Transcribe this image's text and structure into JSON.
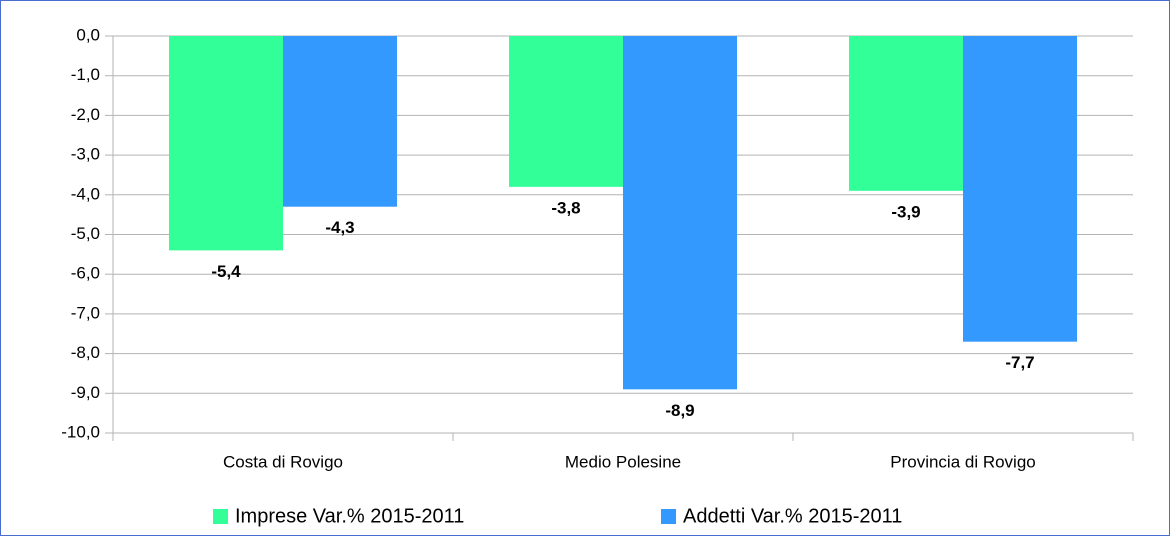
{
  "chart_data": {
    "type": "bar",
    "categories": [
      "Costa di Rovigo",
      "Medio Polesine",
      "Provincia di Rovigo"
    ],
    "series": [
      {
        "name": "Imprese Var.% 2015-2011",
        "color": "#33ff99",
        "values": [
          -5.4,
          -3.8,
          -3.9
        ],
        "value_labels": [
          "-5,4",
          "-3,8",
          "-3,9"
        ]
      },
      {
        "name": "Addetti Var.% 2015-2011",
        "color": "#3399ff",
        "values": [
          -4.3,
          -8.9,
          -7.7
        ],
        "value_labels": [
          "-4,3",
          "-8,9",
          "-7,7"
        ]
      }
    ],
    "ylim": [
      -10,
      0
    ],
    "yticks": [
      {
        "value": 0,
        "label": "0,0"
      },
      {
        "value": -1,
        "label": "-1,0"
      },
      {
        "value": -2,
        "label": "-2,0"
      },
      {
        "value": -3,
        "label": "-3,0"
      },
      {
        "value": -4,
        "label": "-4,0"
      },
      {
        "value": -5,
        "label": "-5,0"
      },
      {
        "value": -6,
        "label": "-6,0"
      },
      {
        "value": -7,
        "label": "-7,0"
      },
      {
        "value": -8,
        "label": "-8,0"
      },
      {
        "value": -9,
        "label": "-9,0"
      },
      {
        "value": -10,
        "label": "-10,0"
      }
    ],
    "grid": true,
    "legend": "bottom"
  }
}
